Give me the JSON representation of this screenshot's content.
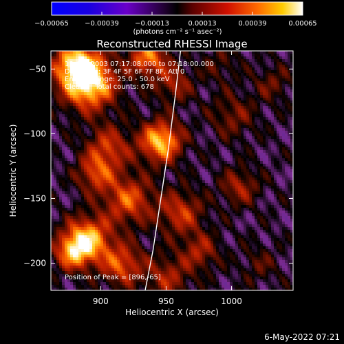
{
  "chart_data": {
    "type": "heatmap",
    "title": "Reconstructed RHESSI Image",
    "xlabel": "Heliocentric X (arcsec)",
    "ylabel": "Heliocentric Y (arcsec)",
    "xlim": [
      862,
      1047
    ],
    "ylim": [
      -221,
      -36
    ],
    "x_ticks": [
      900,
      950,
      1000
    ],
    "y_ticks": [
      -50,
      -100,
      -150,
      -200
    ],
    "colorbar": {
      "range": [
        -0.00065,
        0.00065
      ],
      "tick_values": [
        -0.00065,
        -0.00039,
        -0.00013,
        0.00013,
        0.00039,
        0.00065
      ],
      "tick_labels": [
        "-0.00065",
        "-0.00039",
        "-0.00013",
        "0.00013",
        "0.00039",
        "0.00065"
      ],
      "units_label": "(photons cm⁻² s⁻¹ asec⁻²)"
    },
    "annotations": [
      "13-Oct-2003 07:17:08.000 to 07:18:00.000",
      "Detectors: 3F 4F 5F 6F 7F 8F, Att 0",
      "Energy Range: 25.0 - 50.0 keV",
      "Clean     Total counts: 678"
    ],
    "peak_label": "Position of Peak = [896,-65]",
    "peak_position": [
      896,
      -65
    ],
    "limb_curve": {
      "x": [
        961,
        957,
        952,
        946,
        940,
        934
      ],
      "y": [
        -36,
        -70,
        -110,
        -150,
        -190,
        -221
      ]
    },
    "colormap_stops": [
      "#0000c8",
      "#2a1aa0",
      "#5a2a9a",
      "#7a2a90",
      "#000000",
      "#6a1000",
      "#c02000",
      "#ff6a00",
      "#ffcc22",
      "#ffffff"
    ]
  },
  "footer": {
    "timestamp": "6-May-2022 07:21"
  }
}
